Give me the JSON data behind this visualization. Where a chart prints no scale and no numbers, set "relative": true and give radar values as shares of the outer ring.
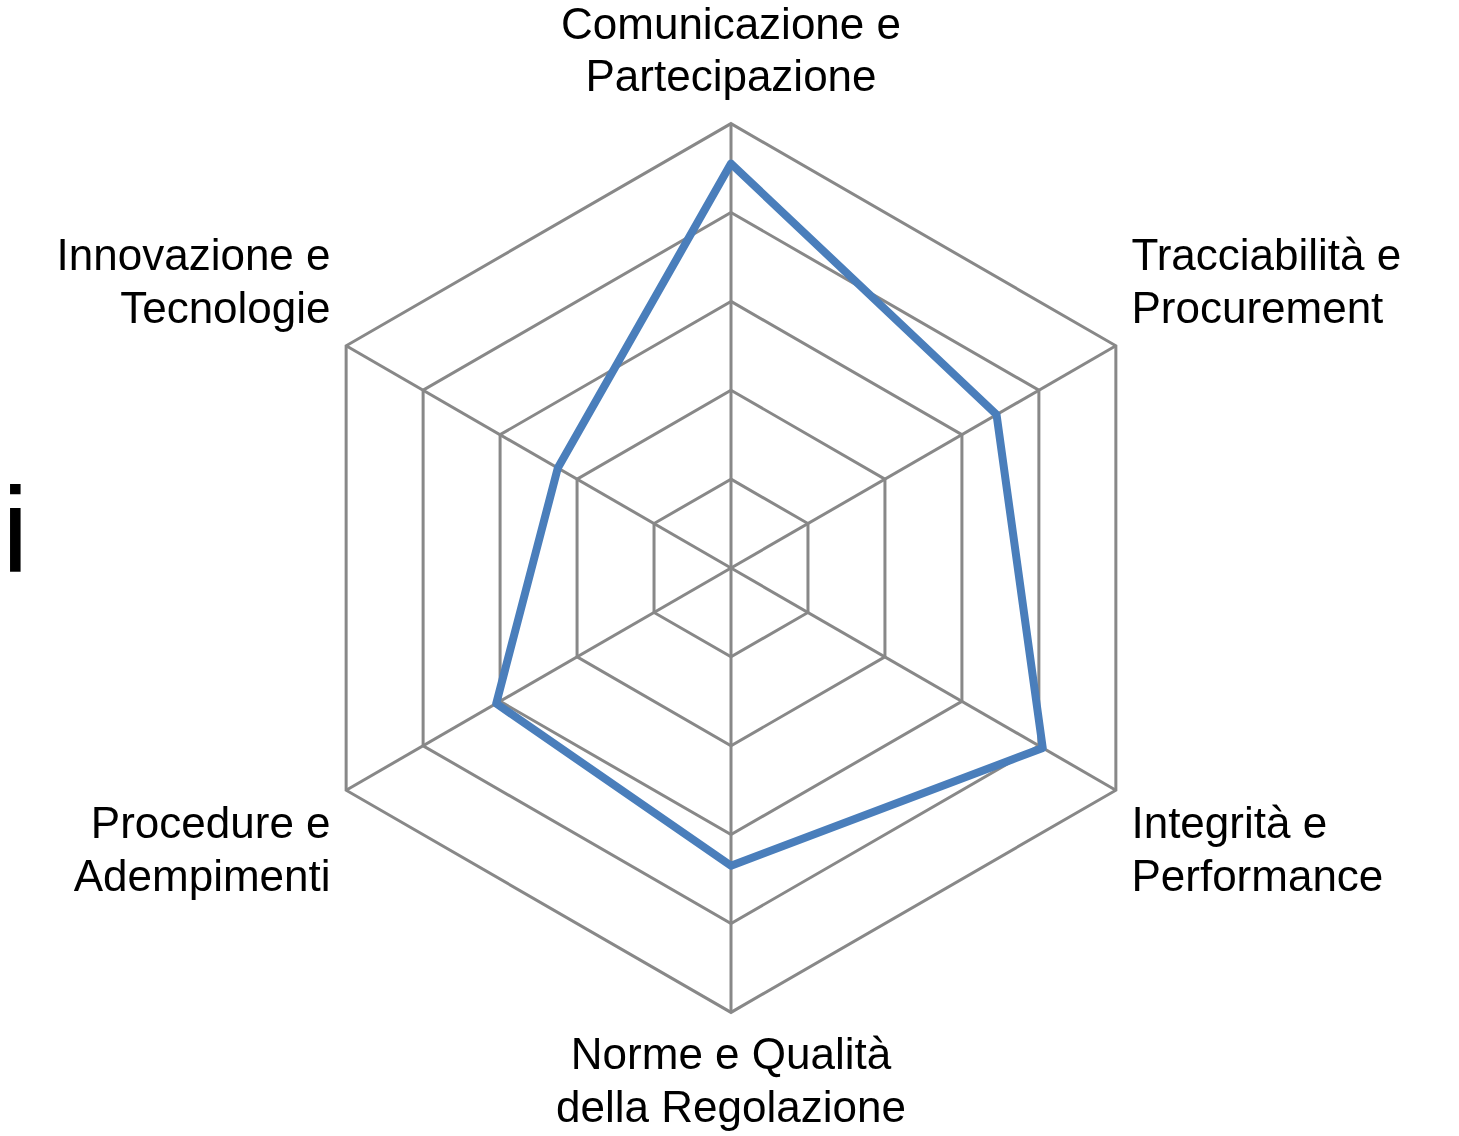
{
  "chart_data": {
    "type": "radar",
    "relative": true,
    "grid": true,
    "legend": false,
    "marker": "none",
    "categories": [
      "Comunicazione e Partecipazione",
      "Tracciabilità e Procurement",
      "Integrità e Performance",
      "Norme e Qualità della Regolazione",
      "Procedure e Adempimenti",
      "Innovazione e Tecnologie"
    ],
    "series": [
      {
        "color": "#4a7ebb",
        "values": [
          0.91,
          0.69,
          0.81,
          0.67,
          0.61,
          0.45
        ]
      }
    ],
    "annotations": [
      "i"
    ]
  }
}
